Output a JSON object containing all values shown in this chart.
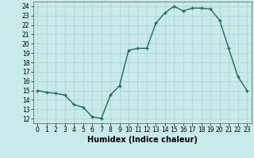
{
  "x": [
    0,
    1,
    2,
    3,
    4,
    5,
    6,
    7,
    8,
    9,
    10,
    11,
    12,
    13,
    14,
    15,
    16,
    17,
    18,
    19,
    20,
    21,
    22,
    23
  ],
  "y": [
    15.0,
    14.8,
    14.7,
    14.5,
    13.5,
    13.2,
    12.2,
    12.0,
    14.5,
    15.5,
    19.3,
    19.5,
    19.5,
    22.2,
    23.3,
    24.0,
    23.5,
    23.8,
    23.8,
    23.7,
    22.5,
    19.5,
    16.5,
    15.0
  ],
  "line_color": "#1a6b5a",
  "marker": "+",
  "markersize": 3.5,
  "markeredgewidth": 1.0,
  "linewidth": 1.0,
  "linestyle": "-",
  "xlabel": "Humidex (Indice chaleur)",
  "xlabel_fontsize": 7,
  "xlabel_fontweight": "bold",
  "bg_color": "#c8eaea",
  "grid_color": "#b0d0d0",
  "xlim": [
    -0.5,
    23.5
  ],
  "ylim": [
    11.5,
    24.5
  ],
  "yticks": [
    12,
    13,
    14,
    15,
    16,
    17,
    18,
    19,
    20,
    21,
    22,
    23,
    24
  ],
  "xticks": [
    0,
    1,
    2,
    3,
    4,
    5,
    6,
    7,
    8,
    9,
    10,
    11,
    12,
    13,
    14,
    15,
    16,
    17,
    18,
    19,
    20,
    21,
    22,
    23
  ],
  "tick_fontsize": 5.5
}
